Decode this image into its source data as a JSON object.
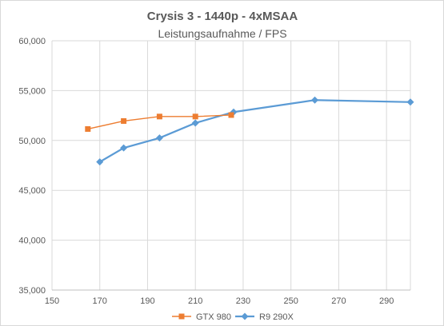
{
  "chart_data": {
    "type": "line",
    "title": "Crysis 3 - 1440p - 4xMSAA",
    "subtitle": "Leistungsaufnahme / FPS",
    "xlabel": "",
    "ylabel": "",
    "xlim": [
      150,
      300
    ],
    "ylim": [
      35000,
      60000
    ],
    "x_ticks": [
      "150",
      "170",
      "190",
      "210",
      "230",
      "250",
      "270",
      "290"
    ],
    "y_ticks": [
      "35,000",
      "40,000",
      "45,000",
      "50,000",
      "55,000",
      "60,000"
    ],
    "grid": "vertical-and-horizontal",
    "legend_position": "bottom",
    "series": [
      {
        "name": "GTX 980",
        "color": "#ed7d31",
        "marker": "square",
        "points": [
          [
            165,
            51150
          ],
          [
            180,
            51950
          ],
          [
            195,
            52400
          ],
          [
            210,
            52400
          ],
          [
            225,
            52550
          ]
        ]
      },
      {
        "name": "R9 290X",
        "color": "#5b9bd5",
        "marker": "diamond",
        "points": [
          [
            170,
            47850
          ],
          [
            180,
            49250
          ],
          [
            195,
            50250
          ],
          [
            210,
            51750
          ],
          [
            226,
            52850
          ],
          [
            260,
            54050
          ],
          [
            300,
            53850
          ]
        ]
      }
    ]
  }
}
